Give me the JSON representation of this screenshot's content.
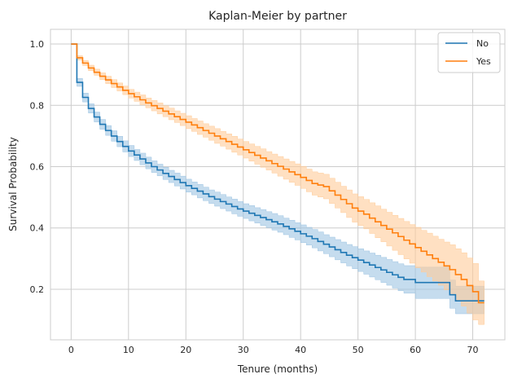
{
  "chart_data": {
    "type": "line",
    "title": "Kaplan-Meier by partner",
    "xlabel": "Tenure (months)",
    "ylabel": "Survival Probability",
    "xlim": [
      -3.6,
      75.6
    ],
    "ylim": [
      0.035,
      1.048
    ],
    "xticks": [
      0,
      10,
      20,
      30,
      40,
      50,
      60,
      70
    ],
    "yticks": [
      0.2,
      0.4,
      0.6,
      0.8,
      1.0
    ],
    "xtick_labels": [
      "0",
      "10",
      "20",
      "30",
      "40",
      "50",
      "60",
      "70"
    ],
    "ytick_labels": [
      "0.2",
      "0.4",
      "0.6",
      "0.8",
      "1.0"
    ],
    "grid": true,
    "legend_position": "top-right",
    "step": "post",
    "series": [
      {
        "name": "No",
        "color": "#1f77b4",
        "band_color": "#9ec4e2",
        "x": [
          0,
          1,
          2,
          3,
          4,
          5,
          6,
          7,
          8,
          9,
          10,
          11,
          12,
          13,
          14,
          15,
          16,
          17,
          18,
          19,
          20,
          21,
          22,
          23,
          24,
          25,
          26,
          27,
          28,
          29,
          30,
          31,
          32,
          33,
          34,
          35,
          36,
          37,
          38,
          39,
          40,
          41,
          42,
          43,
          44,
          45,
          46,
          47,
          48,
          49,
          50,
          51,
          52,
          53,
          54,
          55,
          56,
          57,
          58,
          60,
          62,
          64,
          65,
          66,
          67,
          68,
          69,
          70,
          71
        ],
        "y": [
          1.0,
          0.875,
          0.826,
          0.79,
          0.762,
          0.738,
          0.718,
          0.7,
          0.682,
          0.666,
          0.651,
          0.638,
          0.625,
          0.612,
          0.6,
          0.589,
          0.578,
          0.568,
          0.558,
          0.548,
          0.538,
          0.529,
          0.52,
          0.511,
          0.502,
          0.494,
          0.486,
          0.478,
          0.47,
          0.462,
          0.455,
          0.448,
          0.441,
          0.434,
          0.427,
          0.42,
          0.413,
          0.405,
          0.397,
          0.389,
          0.381,
          0.373,
          0.365,
          0.356,
          0.347,
          0.338,
          0.329,
          0.32,
          0.311,
          0.303,
          0.295,
          0.287,
          0.279,
          0.271,
          0.263,
          0.255,
          0.247,
          0.239,
          0.232,
          0.222,
          0.222,
          0.222,
          0.222,
          0.182,
          0.162,
          0.162,
          0.162,
          0.162,
          0.162
        ],
        "lower": [
          1.0,
          0.862,
          0.811,
          0.775,
          0.746,
          0.722,
          0.702,
          0.683,
          0.665,
          0.648,
          0.633,
          0.62,
          0.606,
          0.593,
          0.581,
          0.57,
          0.558,
          0.548,
          0.537,
          0.527,
          0.517,
          0.508,
          0.498,
          0.489,
          0.48,
          0.471,
          0.463,
          0.455,
          0.446,
          0.438,
          0.431,
          0.423,
          0.416,
          0.408,
          0.401,
          0.393,
          0.386,
          0.378,
          0.369,
          0.361,
          0.352,
          0.344,
          0.335,
          0.325,
          0.316,
          0.306,
          0.296,
          0.286,
          0.276,
          0.267,
          0.258,
          0.249,
          0.24,
          0.231,
          0.222,
          0.213,
          0.204,
          0.195,
          0.187,
          0.17,
          0.17,
          0.17,
          0.17,
          0.138,
          0.12,
          0.12,
          0.12,
          0.12,
          0.12
        ],
        "upper": [
          1.0,
          0.888,
          0.84,
          0.805,
          0.778,
          0.754,
          0.734,
          0.717,
          0.699,
          0.684,
          0.669,
          0.656,
          0.644,
          0.631,
          0.619,
          0.608,
          0.598,
          0.588,
          0.579,
          0.569,
          0.559,
          0.55,
          0.542,
          0.533,
          0.524,
          0.517,
          0.509,
          0.501,
          0.494,
          0.486,
          0.479,
          0.473,
          0.466,
          0.46,
          0.453,
          0.447,
          0.44,
          0.432,
          0.425,
          0.417,
          0.41,
          0.402,
          0.395,
          0.387,
          0.378,
          0.37,
          0.362,
          0.354,
          0.346,
          0.339,
          0.332,
          0.325,
          0.318,
          0.311,
          0.304,
          0.297,
          0.29,
          0.283,
          0.277,
          0.272,
          0.272,
          0.272,
          0.272,
          0.23,
          0.21,
          0.21,
          0.21,
          0.21,
          0.21
        ],
        "end_x": 72
      },
      {
        "name": "Yes",
        "color": "#ff7f0e",
        "band_color": "#ffcc99",
        "x": [
          0,
          1,
          2,
          3,
          4,
          5,
          6,
          7,
          8,
          9,
          10,
          11,
          12,
          13,
          14,
          15,
          16,
          17,
          18,
          19,
          20,
          21,
          22,
          23,
          24,
          25,
          26,
          27,
          28,
          29,
          30,
          31,
          32,
          33,
          34,
          35,
          36,
          37,
          38,
          39,
          40,
          41,
          42,
          43,
          44,
          45,
          46,
          47,
          48,
          49,
          50,
          51,
          52,
          53,
          54,
          55,
          56,
          57,
          58,
          59,
          60,
          61,
          62,
          63,
          64,
          65,
          66,
          67,
          68,
          69,
          70,
          71
        ],
        "y": [
          1.0,
          0.955,
          0.938,
          0.922,
          0.908,
          0.895,
          0.883,
          0.871,
          0.86,
          0.849,
          0.838,
          0.828,
          0.818,
          0.808,
          0.799,
          0.79,
          0.781,
          0.772,
          0.763,
          0.754,
          0.745,
          0.736,
          0.727,
          0.718,
          0.709,
          0.7,
          0.691,
          0.682,
          0.673,
          0.664,
          0.655,
          0.646,
          0.637,
          0.628,
          0.619,
          0.61,
          0.601,
          0.592,
          0.583,
          0.574,
          0.565,
          0.555,
          0.545,
          0.54,
          0.535,
          0.521,
          0.507,
          0.493,
          0.479,
          0.465,
          0.455,
          0.445,
          0.432,
          0.42,
          0.408,
          0.396,
          0.384,
          0.372,
          0.36,
          0.348,
          0.336,
          0.324,
          0.312,
          0.3,
          0.288,
          0.276,
          0.264,
          0.248,
          0.232,
          0.212,
          0.192,
          0.156
        ],
        "lower": [
          1.0,
          0.948,
          0.93,
          0.913,
          0.898,
          0.884,
          0.871,
          0.858,
          0.847,
          0.835,
          0.824,
          0.813,
          0.802,
          0.792,
          0.782,
          0.772,
          0.763,
          0.753,
          0.744,
          0.734,
          0.724,
          0.715,
          0.705,
          0.696,
          0.686,
          0.676,
          0.667,
          0.657,
          0.647,
          0.638,
          0.628,
          0.618,
          0.608,
          0.598,
          0.589,
          0.579,
          0.569,
          0.559,
          0.549,
          0.539,
          0.529,
          0.518,
          0.507,
          0.501,
          0.495,
          0.48,
          0.465,
          0.45,
          0.434,
          0.419,
          0.408,
          0.397,
          0.382,
          0.368,
          0.355,
          0.341,
          0.327,
          0.313,
          0.299,
          0.285,
          0.27,
          0.256,
          0.241,
          0.227,
          0.213,
          0.198,
          0.183,
          0.164,
          0.145,
          0.122,
          0.1,
          0.085
        ],
        "upper": [
          1.0,
          0.962,
          0.946,
          0.931,
          0.918,
          0.906,
          0.895,
          0.884,
          0.873,
          0.863,
          0.852,
          0.843,
          0.834,
          0.824,
          0.816,
          0.808,
          0.799,
          0.791,
          0.782,
          0.774,
          0.766,
          0.757,
          0.749,
          0.74,
          0.732,
          0.724,
          0.715,
          0.707,
          0.699,
          0.69,
          0.682,
          0.674,
          0.666,
          0.658,
          0.649,
          0.641,
          0.633,
          0.625,
          0.617,
          0.609,
          0.601,
          0.592,
          0.583,
          0.579,
          0.575,
          0.562,
          0.549,
          0.536,
          0.524,
          0.511,
          0.502,
          0.493,
          0.482,
          0.472,
          0.461,
          0.451,
          0.441,
          0.431,
          0.421,
          0.411,
          0.402,
          0.392,
          0.383,
          0.373,
          0.363,
          0.354,
          0.345,
          0.332,
          0.319,
          0.302,
          0.284,
          0.227
        ],
        "end_x": 72
      }
    ]
  }
}
